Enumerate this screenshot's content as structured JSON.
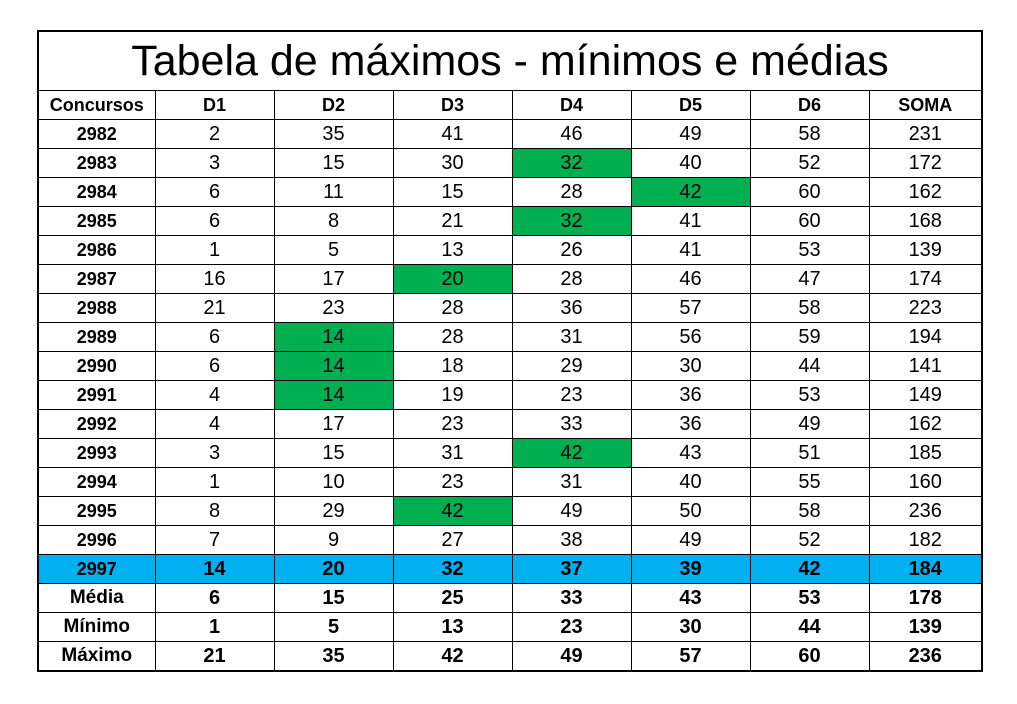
{
  "title": "Tabela de máximos - mínimos e médias",
  "colors": {
    "highlight": "#00b050",
    "current_row": "#00b0f0",
    "border": "#000000"
  },
  "headers": [
    "Concursos",
    "D1",
    "D2",
    "D3",
    "D4",
    "D5",
    "D6",
    "SOMA"
  ],
  "rows": [
    {
      "label": "2982",
      "values": [
        "2",
        "35",
        "41",
        "46",
        "49",
        "58",
        "231"
      ],
      "highlight": []
    },
    {
      "label": "2983",
      "values": [
        "3",
        "15",
        "30",
        "32",
        "40",
        "52",
        "172"
      ],
      "highlight": [
        3
      ]
    },
    {
      "label": "2984",
      "values": [
        "6",
        "11",
        "15",
        "28",
        "42",
        "60",
        "162"
      ],
      "highlight": [
        4
      ]
    },
    {
      "label": "2985",
      "values": [
        "6",
        "8",
        "21",
        "32",
        "41",
        "60",
        "168"
      ],
      "highlight": [
        3
      ]
    },
    {
      "label": "2986",
      "values": [
        "1",
        "5",
        "13",
        "26",
        "41",
        "53",
        "139"
      ],
      "highlight": []
    },
    {
      "label": "2987",
      "values": [
        "16",
        "17",
        "20",
        "28",
        "46",
        "47",
        "174"
      ],
      "highlight": [
        2
      ]
    },
    {
      "label": "2988",
      "values": [
        "21",
        "23",
        "28",
        "36",
        "57",
        "58",
        "223"
      ],
      "highlight": []
    },
    {
      "label": "2989",
      "values": [
        "6",
        "14",
        "28",
        "31",
        "56",
        "59",
        "194"
      ],
      "highlight": [
        1
      ]
    },
    {
      "label": "2990",
      "values": [
        "6",
        "14",
        "18",
        "29",
        "30",
        "44",
        "141"
      ],
      "highlight": [
        1
      ]
    },
    {
      "label": "2991",
      "values": [
        "4",
        "14",
        "19",
        "23",
        "36",
        "53",
        "149"
      ],
      "highlight": [
        1
      ]
    },
    {
      "label": "2992",
      "values": [
        "4",
        "17",
        "23",
        "33",
        "36",
        "49",
        "162"
      ],
      "highlight": []
    },
    {
      "label": "2993",
      "values": [
        "3",
        "15",
        "31",
        "42",
        "43",
        "51",
        "185"
      ],
      "highlight": [
        3
      ]
    },
    {
      "label": "2994",
      "values": [
        "1",
        "10",
        "23",
        "31",
        "40",
        "55",
        "160"
      ],
      "highlight": []
    },
    {
      "label": "2995",
      "values": [
        "8",
        "29",
        "42",
        "49",
        "50",
        "58",
        "236"
      ],
      "highlight": [
        2
      ]
    },
    {
      "label": "2996",
      "values": [
        "7",
        "9",
        "27",
        "38",
        "49",
        "52",
        "182"
      ],
      "highlight": []
    },
    {
      "label": "2997",
      "values": [
        "14",
        "20",
        "32",
        "37",
        "39",
        "42",
        "184"
      ],
      "highlight": [],
      "current": true
    }
  ],
  "stats": [
    {
      "label": "Média",
      "values": [
        "6",
        "15",
        "25",
        "33",
        "43",
        "53",
        "178"
      ]
    },
    {
      "label": "Mínimo",
      "values": [
        "1",
        "5",
        "13",
        "23",
        "30",
        "44",
        "139"
      ]
    },
    {
      "label": "Máximo",
      "values": [
        "21",
        "35",
        "42",
        "49",
        "57",
        "60",
        "236"
      ]
    }
  ]
}
